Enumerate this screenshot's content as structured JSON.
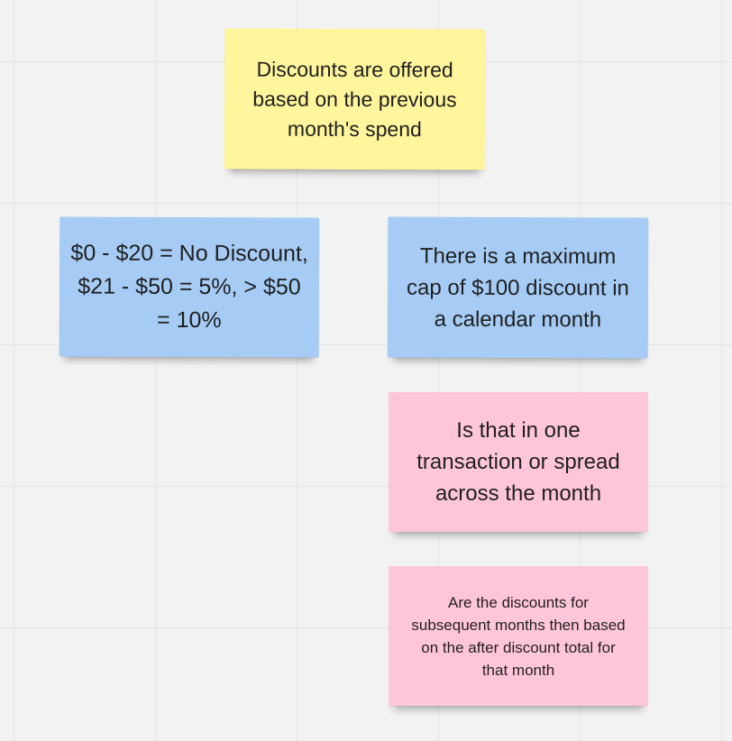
{
  "canvas": {
    "background_color": "#f2f2f2",
    "grid_color": "#e3e3e3"
  },
  "notes": [
    {
      "id": "previous-month-spend",
      "color": "#fff59c",
      "text": "Discounts are offered based on the previous month's spend"
    },
    {
      "id": "discount-tiers",
      "color": "#a6ccf5",
      "text": "$0 - $20 = No Discount, $21 - $50 = 5%, > $50 = 10%"
    },
    {
      "id": "maximum-cap",
      "color": "#a6ccf5",
      "text": "There is a maximum cap of $100 discount in a calendar month"
    },
    {
      "id": "transaction-question",
      "color": "#ffc6da",
      "text": "Is that in one transaction or spread across the month"
    },
    {
      "id": "subsequent-months-question",
      "color": "#ffc6da",
      "text": "Are the discounts for subsequent months then based on the after discount total for that month"
    }
  ]
}
